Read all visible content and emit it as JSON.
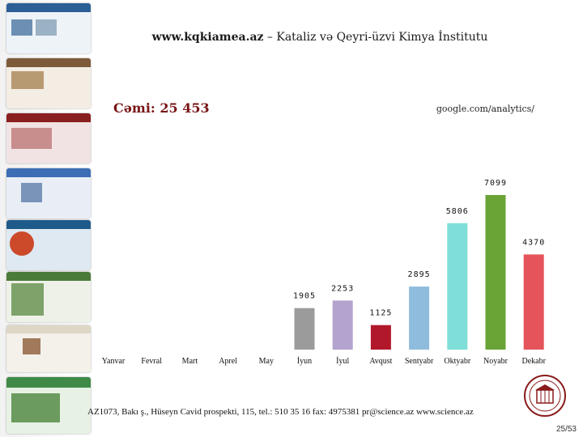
{
  "slide": {
    "title_site": "www.kqkiamea.az",
    "title_rest": " – Kataliz və Qeyri-üzvi Kimya İnstitutu",
    "total": "Cəmi: 25 453",
    "source": "google.com/analytics/",
    "footer": "AZ1073, Bakı ş., Hüseyn Cavid prospekti, 115, tel.: 510 35 16  fax: 4975381  pr@science.az  www.science.az",
    "page_number": "25/53"
  },
  "colors": {
    "total_text": "#7a1515",
    "bars": [
      "#9b9b9b",
      "#b3a3cf",
      "#b2182b",
      "#8fbcdc",
      "#7fdfd8",
      "#6aa336",
      "#e5545b"
    ]
  },
  "chart_data": {
    "type": "bar",
    "categories": [
      "Yanvar",
      "Fevral",
      "Mart",
      "Aprel",
      "May",
      "İyun",
      "İyul",
      "Avqust",
      "Sentyabr",
      "Oktyabr",
      "Noyabr",
      "Dekabr"
    ],
    "values": [
      null,
      null,
      null,
      null,
      null,
      1905,
      2253,
      1125,
      2895,
      5806,
      7099,
      4370
    ],
    "data_labels": [
      "",
      "",
      "",
      "",
      "",
      "1905",
      "2253",
      "1125",
      "2895",
      "5806",
      "7099",
      "4370"
    ],
    "ylim": [
      0,
      7099
    ],
    "grid": false,
    "legend": "none"
  }
}
